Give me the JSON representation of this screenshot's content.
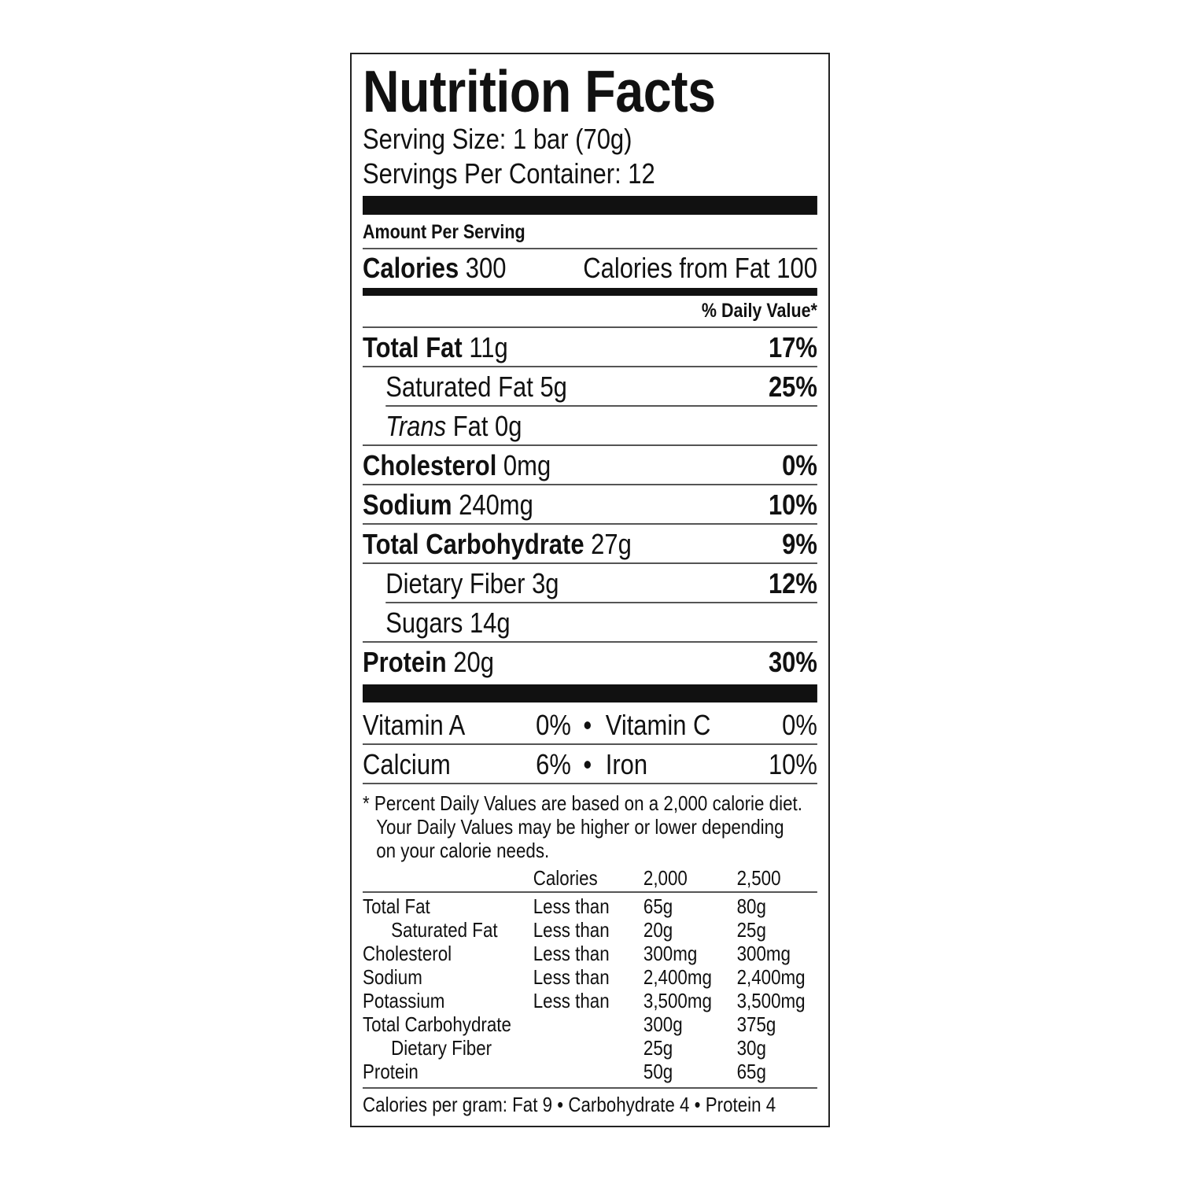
{
  "title": "Nutrition Facts",
  "serving_size": "Serving Size: 1 bar (70g)",
  "servings_per_container": "Servings Per Container: 12",
  "amount_per_serving": "Amount Per Serving",
  "calories": {
    "label": "Calories",
    "value": "300",
    "from_fat": "Calories from Fat 100"
  },
  "daily_value_header": "% Daily Value*",
  "nutrients": [
    {
      "name": "Total Fat",
      "amount": "11g",
      "dv": "17%"
    },
    {
      "name": "Saturated Fat",
      "amount": "5g",
      "dv": "25%"
    },
    {
      "name": "Trans",
      "name_rest": "Fat",
      "amount": "0g",
      "dv": ""
    },
    {
      "name": "Cholesterol",
      "amount": "0mg",
      "dv": "0%"
    },
    {
      "name": "Sodium",
      "amount": "240mg",
      "dv": "10%"
    },
    {
      "name": "Total Carbohydrate",
      "amount": "27g",
      "dv": "9%"
    },
    {
      "name": "Dietary Fiber",
      "amount": "3g",
      "dv": "12%"
    },
    {
      "name": "Sugars",
      "amount": "14g",
      "dv": ""
    },
    {
      "name": "Protein",
      "amount": "20g",
      "dv": "30%"
    }
  ],
  "vitamins": [
    {
      "left_name": "Vitamin A",
      "left_dv": "0%",
      "right_name": "Vitamin C",
      "right_dv": "0%"
    },
    {
      "left_name": "Calcium",
      "left_dv": "6%",
      "right_name": "Iron",
      "right_dv": "10%"
    }
  ],
  "bullet": "•",
  "footnote": [
    "* Percent Daily Values are based on a 2,000 calorie diet.",
    "Your Daily Values may be higher or lower depending",
    "on your calorie needs."
  ],
  "dv_table": {
    "header": [
      "",
      "Calories",
      "2,000",
      "2,500"
    ],
    "rows": [
      [
        "Total Fat",
        "Less than",
        "65g",
        "80g"
      ],
      [
        "Saturated Fat",
        "Less than",
        "20g",
        "25g"
      ],
      [
        "Cholesterol",
        "Less than",
        "300mg",
        "300mg"
      ],
      [
        "Sodium",
        "Less than",
        "2,400mg",
        "2,400mg"
      ],
      [
        "Potassium",
        "Less than",
        "3,500mg",
        "3,500mg"
      ],
      [
        "Total Carbohydrate",
        "",
        "300g",
        "375g"
      ],
      [
        "Dietary Fiber",
        "",
        "25g",
        "30g"
      ],
      [
        "Protein",
        "",
        "50g",
        "65g"
      ]
    ]
  },
  "calories_per_gram": "Calories per gram:  Fat 9  •  Carbohydrate 4  •  Protein 4"
}
